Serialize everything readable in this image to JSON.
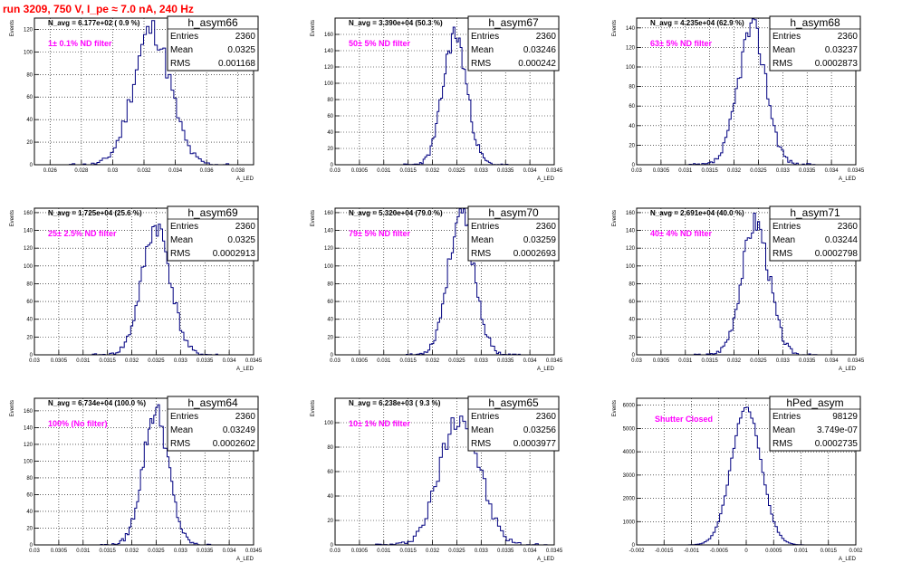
{
  "title": "run 3209,   750 V, I_pe ≈ 7.0 nA, 240 Hz",
  "colors": {
    "title": "#ff0000",
    "histogram": "#000080",
    "note": "#ff00ff"
  },
  "y_axis_label": "Events",
  "x_axis_label": "A_LED",
  "chart_data": [
    {
      "type": "bar",
      "name": "h_asym66",
      "stats": {
        "Entries": "2360",
        "Mean": "0.0325",
        "RMS": "0.001168"
      },
      "n_avg": "N_avg = 6.177e+02 ( 0.9 %)",
      "note": "1± 0.1% ND filter",
      "xlim": [
        0.025,
        0.039
      ],
      "ylim": [
        0,
        130
      ],
      "x_ticks": [
        "0.026",
        "0.028",
        "0.03",
        "0.032",
        "0.034",
        "0.036",
        "0.038"
      ],
      "y_ticks": [
        "0",
        "20",
        "40",
        "60",
        "80",
        "100",
        "120"
      ],
      "mean": 0.0325,
      "sigma": 0.00117,
      "peak": 120,
      "seed": 11
    },
    {
      "type": "bar",
      "name": "h_asym67",
      "stats": {
        "Entries": "2360",
        "Mean": "0.03246",
        "RMS": "0.000242"
      },
      "n_avg": "N_avg = 3.390e+04 (50.3 %)",
      "note": "50± 5% ND filter",
      "xlim": [
        0.03,
        0.0345
      ],
      "ylim": [
        0,
        180
      ],
      "x_ticks": [
        "0.03",
        "0.0305",
        "0.031",
        "0.0315",
        "0.032",
        "0.0325",
        "0.033",
        "0.0335",
        "0.034",
        "0.0345"
      ],
      "y_ticks": [
        "0",
        "20",
        "40",
        "60",
        "80",
        "100",
        "120",
        "140",
        "160"
      ],
      "mean": 0.03246,
      "sigma": 0.000242,
      "peak": 160,
      "seed": 23
    },
    {
      "type": "bar",
      "name": "h_asym68",
      "stats": {
        "Entries": "2360",
        "Mean": "0.03237",
        "RMS": "0.0002873"
      },
      "n_avg": "N_avg = 4.235e+04 (62.9 %)",
      "note": "63± 5% ND filter",
      "xlim": [
        0.03,
        0.0345
      ],
      "ylim": [
        0,
        150
      ],
      "x_ticks": [
        "0.03",
        "0.0305",
        "0.031",
        "0.0315",
        "0.032",
        "0.0325",
        "0.033",
        "0.0335",
        "0.034",
        "0.0345"
      ],
      "y_ticks": [
        "0",
        "20",
        "40",
        "60",
        "80",
        "100",
        "120",
        "140"
      ],
      "mean": 0.03237,
      "sigma": 0.000287,
      "peak": 140,
      "seed": 37
    },
    {
      "type": "bar",
      "name": "h_asym69",
      "stats": {
        "Entries": "2360",
        "Mean": "0.0325",
        "RMS": "0.0002913"
      },
      "n_avg": "N_avg = 1.725e+04 (25.6 %)",
      "note": "25± 2.5% ND filter",
      "xlim": [
        0.03,
        0.0345
      ],
      "ylim": [
        0,
        165
      ],
      "x_ticks": [
        "0.03",
        "0.0305",
        "0.031",
        "0.0315",
        "0.032",
        "0.0325",
        "0.033",
        "0.0335",
        "0.034",
        "0.0345"
      ],
      "y_ticks": [
        "0",
        "20",
        "40",
        "60",
        "80",
        "100",
        "120",
        "140",
        "160"
      ],
      "mean": 0.0325,
      "sigma": 0.000291,
      "peak": 145,
      "seed": 41
    },
    {
      "type": "bar",
      "name": "h_asym70",
      "stats": {
        "Entries": "2360",
        "Mean": "0.03259",
        "RMS": "0.0002693"
      },
      "n_avg": "N_avg = 5.320e+04 (79.0 %)",
      "note": "79± 5% ND filter",
      "xlim": [
        0.03,
        0.0345
      ],
      "ylim": [
        0,
        165
      ],
      "x_ticks": [
        "0.03",
        "0.0305",
        "0.031",
        "0.0315",
        "0.032",
        "0.0325",
        "0.033",
        "0.0335",
        "0.034",
        "0.0345"
      ],
      "y_ticks": [
        "0",
        "20",
        "40",
        "60",
        "80",
        "100",
        "120",
        "140",
        "160"
      ],
      "mean": 0.03259,
      "sigma": 0.000269,
      "peak": 158,
      "seed": 53
    },
    {
      "type": "bar",
      "name": "h_asym71",
      "stats": {
        "Entries": "2360",
        "Mean": "0.03244",
        "RMS": "0.0002798"
      },
      "n_avg": "N_avg = 2.691e+04 (40.0 %)",
      "note": "40± 4% ND filter",
      "xlim": [
        0.03,
        0.0345
      ],
      "ylim": [
        0,
        165
      ],
      "x_ticks": [
        "0.03",
        "0.0305",
        "0.031",
        "0.0315",
        "0.032",
        "0.0325",
        "0.033",
        "0.0335",
        "0.034",
        "0.0345"
      ],
      "y_ticks": [
        "0",
        "20",
        "40",
        "60",
        "80",
        "100",
        "120",
        "140",
        "160"
      ],
      "mean": 0.03244,
      "sigma": 0.00028,
      "peak": 150,
      "seed": 67
    },
    {
      "type": "bar",
      "name": "h_asym64",
      "stats": {
        "Entries": "2360",
        "Mean": "0.03249",
        "RMS": "0.0002602"
      },
      "n_avg": "N_avg = 6.734e+04 (100.0 %)",
      "note": "100% (No filter)",
      "xlim": [
        0.03,
        0.0345
      ],
      "ylim": [
        0,
        175
      ],
      "x_ticks": [
        "0.03",
        "0.0305",
        "0.031",
        "0.0315",
        "0.032",
        "0.0325",
        "0.033",
        "0.0335",
        "0.034",
        "0.0345"
      ],
      "y_ticks": [
        "0",
        "20",
        "40",
        "60",
        "80",
        "100",
        "120",
        "140",
        "160"
      ],
      "mean": 0.03249,
      "sigma": 0.00026,
      "peak": 160,
      "seed": 79
    },
    {
      "type": "bar",
      "name": "h_asym65",
      "stats": {
        "Entries": "2360",
        "Mean": "0.03256",
        "RMS": "0.0003977"
      },
      "n_avg": "N_avg = 6.238e+03 ( 9.3 %)",
      "note": "10± 1% ND filter",
      "xlim": [
        0.03,
        0.0345
      ],
      "ylim": [
        0,
        120
      ],
      "x_ticks": [
        "0.03",
        "0.0305",
        "0.031",
        "0.0315",
        "0.032",
        "0.0325",
        "0.033",
        "0.0335",
        "0.034",
        "0.0345"
      ],
      "y_ticks": [
        "0",
        "20",
        "40",
        "60",
        "80",
        "100"
      ],
      "mean": 0.03256,
      "sigma": 0.000398,
      "peak": 108,
      "seed": 97
    },
    {
      "type": "bar",
      "name": "hPed_asym",
      "stats": {
        "Entries": "98129",
        "Mean": "3.749e-07",
        "RMS": "0.0002735"
      },
      "n_avg": "",
      "note": "Shutter Closed",
      "xlim": [
        -0.002,
        0.002
      ],
      "ylim": [
        0,
        6300
      ],
      "x_ticks": [
        "-0.002",
        "-0.0015",
        "-0.001",
        "-0.0005",
        "0",
        "0.0005",
        "0.001",
        "0.0015",
        "0.002"
      ],
      "y_ticks": [
        "0",
        "1000",
        "2000",
        "3000",
        "4000",
        "5000",
        "6000"
      ],
      "mean": 0.0,
      "sigma": 0.00027,
      "peak": 5900,
      "seed": 7
    }
  ]
}
